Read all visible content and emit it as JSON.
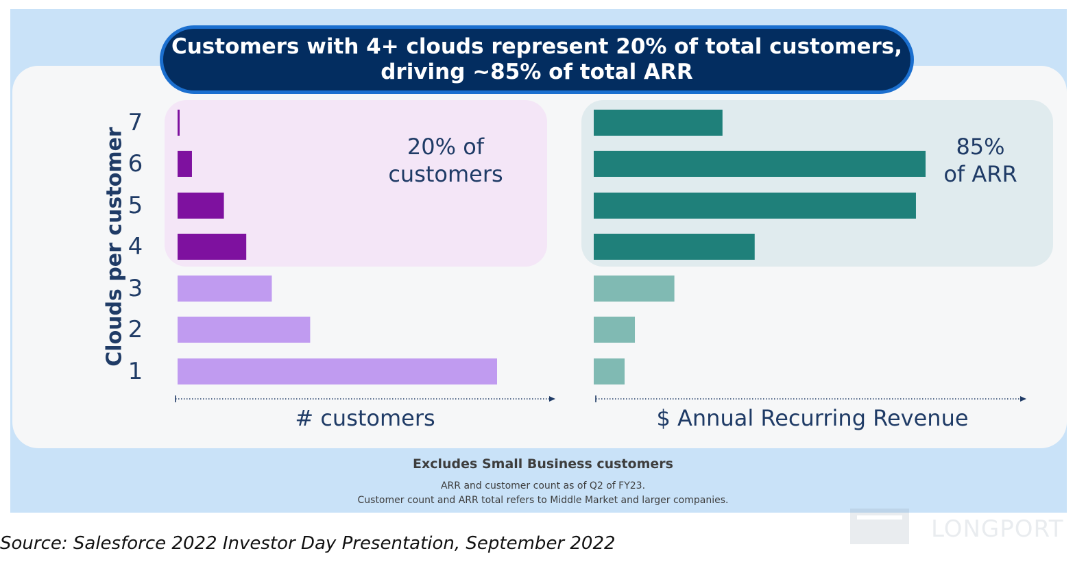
{
  "headline": {
    "line1": "Customers with 4+ clouds represent 20% of total customers,",
    "line2": "driving ~85% of total ARR"
  },
  "highlights": {
    "left_line1": "20% of",
    "left_line2": "customers",
    "right_line1": "85%",
    "right_line2": "of ARR"
  },
  "chart_data": [
    {
      "type": "bar",
      "orientation": "horizontal",
      "categories": [
        "1",
        "2",
        "3",
        "4",
        "5",
        "6",
        "7"
      ],
      "values": [
        100,
        41.5,
        29.5,
        21.5,
        14.5,
        4.5,
        0.5
      ],
      "xlabel": "# customers",
      "ylabel": "Clouds per customer",
      "xlim": [
        0,
        100
      ],
      "axis_ticks": false,
      "colors": [
        "#c09bf0",
        "#c09bf0",
        "#c09bf0",
        "#7e119f",
        "#7e119f",
        "#7e119f",
        "#7e119f"
      ]
    },
    {
      "type": "bar",
      "orientation": "horizontal",
      "categories": [
        "1",
        "2",
        "3",
        "4",
        "5",
        "6",
        "7"
      ],
      "values": [
        9.3,
        12.4,
        24.3,
        48.5,
        97.1,
        100,
        38.8
      ],
      "xlabel": "$ Annual Recurring Revenue",
      "ylabel": "Clouds per customer",
      "xlim": [
        0,
        100
      ],
      "axis_ticks": false,
      "colors": [
        "#80bab3",
        "#80bab3",
        "#80bab3",
        "#1f807a",
        "#1f807a",
        "#1f807a",
        "#1f807a"
      ]
    }
  ],
  "footer": {
    "bold": "Excludes Small Business customers",
    "note1": "ARR and customer count as of Q2 of FY23.",
    "note2": "Customer count and ARR total refers to Middle Market and larger companies."
  },
  "source": "Source: Salesforce 2022 Investor Day Presentation, September 2022",
  "watermark": "LONGPORT",
  "colors": {
    "slide_bg": "#c9e2f8",
    "card_bg": "#f6f7f8",
    "title_bg": "#032d60",
    "title_border": "#1b6fcf",
    "text_navy": "#1f3b66"
  }
}
